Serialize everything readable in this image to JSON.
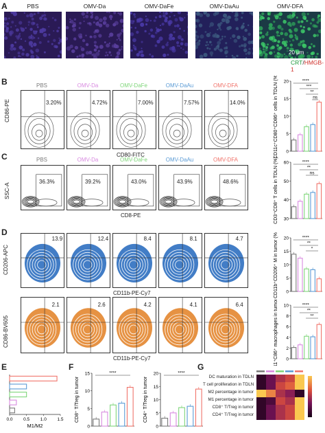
{
  "panel_a": {
    "letter": "A",
    "groups": [
      "PBS",
      "OMV-Da",
      "OMV-DaFe",
      "OMV-DaAu",
      "OMV-DFA"
    ],
    "scale_bar": "20 μm",
    "legend_crt": "CRT",
    "legend_sep": "/",
    "legend_hmgb": "HMGB-1"
  },
  "panel_b": {
    "letter": "B",
    "groups": [
      "PBS",
      "OMV-Da",
      "OMV-DaFe",
      "OMV-DaAu",
      "OMV-DFA"
    ],
    "percentages": [
      "3.20%",
      "4.72%",
      "7.00%",
      "7.57%",
      "14.0%"
    ],
    "y_label": "CD86-PE",
    "x_label": "CD80-FITC",
    "chart_y_label": "CD11c⁺CD80⁺CD86⁺ cells in TDLN (%)",
    "chart_ticks": [
      "0",
      "5",
      "10",
      "15",
      "20"
    ],
    "sig": [
      "ns",
      "**",
      "***",
      "****"
    ]
  },
  "panel_c": {
    "letter": "C",
    "groups": [
      "PBS",
      "OMV-Da",
      "OMV-DaFe",
      "OMV-DaAu",
      "OMV-DFA"
    ],
    "percentages": [
      "36.3%",
      "39.2%",
      "43.0%",
      "43.9%",
      "48.6%"
    ],
    "y_label": "SSC-A",
    "x_label": "CD8-PE",
    "chart_y_label": "CD3⁺CD8⁺ T cells in TDLN (%)",
    "chart_ticks": [
      "30",
      "40",
      "50",
      "60"
    ],
    "sig": [
      "****",
      "**",
      "ns"
    ]
  },
  "panel_d": {
    "letter": "D",
    "groups": [
      "PBS",
      "OMV-Da",
      "OMV-DaFe",
      "OMV-DaAu",
      "OMV-DFA"
    ],
    "blue_values": [
      "13.9",
      "12.4",
      "8.4",
      "8.1",
      "4.7"
    ],
    "orange_values": [
      "2.1",
      "2.6",
      "4.2",
      "4.1",
      "6.4"
    ],
    "blue_y_label": "CD206-APC",
    "orange_y_label": "CD86-BV605",
    "x_label": "CD11b-PE-Cy7",
    "chart1_y_label": "CD11b⁺CD206⁺ M in tumor (%)",
    "chart1_ticks": [
      "0",
      "5",
      "10",
      "15",
      "20"
    ],
    "chart1_sig": [
      "****",
      "**",
      "*"
    ],
    "chart2_y_label": "CD11⁺C86⁺ macrophages in tumor (%)",
    "chart2_ticks": [
      "0",
      "2",
      "4",
      "6",
      "8",
      "10"
    ],
    "chart2_sig": [
      "****",
      "**",
      "**"
    ]
  },
  "panel_e": {
    "letter": "E",
    "x_label": "M1/M2",
    "ticks": [
      "0.0",
      "0.5",
      "1.0",
      "1.5"
    ]
  },
  "panel_f": {
    "letter": "F",
    "y1_label": "CD8⁺ T/Treg in tumor",
    "y2_label": "CD4⁺ T/Treg in tumor",
    "ticks1": [
      "0",
      "5",
      "10",
      "15"
    ],
    "ticks2": [
      "0",
      "5",
      "10",
      "15",
      "20"
    ],
    "sig": "****"
  },
  "panel_g": {
    "letter": "G",
    "rows": [
      "DC maturation in TDLN",
      "T cell proliferation in TDLN",
      "M2 percentage in tumor",
      "M1 percentage in tumor",
      "CD8⁺ T/Treg in tumor",
      "CD4⁺ T/Treg in tumor"
    ]
  },
  "colors": {
    "pbs": "#7a7a7a",
    "da": "#d88ae0",
    "dafe": "#7fd67a",
    "daau": "#5b9bd5",
    "dfa": "#f0736a",
    "blue_flow": "#2e6fc0",
    "orange_flow": "#e3862f"
  },
  "chart_data": [
    {
      "type": "bar",
      "categories": [
        "PBS",
        "OMV-Da",
        "OMV-DaFe",
        "OMV-DaAu",
        "OMV-DFA"
      ],
      "values": [
        3.2,
        4.7,
        7.0,
        7.6,
        14.0
      ],
      "ylabel": "CD11c⁺CD80⁺CD86⁺ cells in TDLN (%)",
      "ylim": [
        0,
        20
      ]
    },
    {
      "type": "bar",
      "categories": [
        "PBS",
        "OMV-Da",
        "OMV-DaFe",
        "OMV-DaAu",
        "OMV-DFA"
      ],
      "values": [
        36.3,
        39.2,
        43.0,
        43.9,
        48.6
      ],
      "ylabel": "CD3⁺CD8⁺ T cells in TDLN (%)",
      "ylim": [
        30,
        60
      ]
    },
    {
      "type": "bar",
      "categories": [
        "PBS",
        "OMV-Da",
        "OMV-DaFe",
        "OMV-DaAu",
        "OMV-DFA"
      ],
      "values": [
        13.9,
        12.4,
        8.4,
        8.1,
        4.7
      ],
      "ylabel": "CD11b⁺CD206⁺ M in tumor (%)",
      "ylim": [
        0,
        20
      ]
    },
    {
      "type": "bar",
      "categories": [
        "PBS",
        "OMV-Da",
        "OMV-DaFe",
        "OMV-DaAu",
        "OMV-DFA"
      ],
      "values": [
        2.1,
        2.6,
        4.2,
        4.1,
        6.4
      ],
      "ylabel": "CD11⁺C86⁺ macrophages in tumor (%)",
      "ylim": [
        0,
        10
      ]
    },
    {
      "type": "bar",
      "categories": [
        "PBS",
        "OMV-Da",
        "OMV-DaFe",
        "OMV-DaAu",
        "OMV-DFA"
      ],
      "values": [
        0.15,
        0.2,
        0.5,
        0.5,
        1.4
      ],
      "xlabel": "M1/M2",
      "xlim": [
        0,
        1.5
      ]
    },
    {
      "type": "bar",
      "categories": [
        "PBS",
        "OMV-Da",
        "OMV-DaFe",
        "OMV-DaAu",
        "OMV-DFA"
      ],
      "values": [
        2,
        4,
        6,
        6.5,
        11
      ],
      "ylabel": "CD8⁺ T/Treg in tumor",
      "ylim": [
        0,
        15
      ]
    },
    {
      "type": "bar",
      "categories": [
        "PBS",
        "OMV-Da",
        "OMV-DaFe",
        "OMV-DaAu",
        "OMV-DFA"
      ],
      "values": [
        3,
        5,
        7,
        7.5,
        14
      ],
      "ylabel": "CD4⁺ T/Treg in tumor",
      "ylim": [
        0,
        20
      ]
    },
    {
      "type": "heatmap",
      "rows": [
        "DC maturation in TDLN",
        "T cell proliferation in TDLN",
        "M2 percentage in tumor",
        "M1 percentage in tumor",
        "CD8⁺ T/Treg in tumor",
        "CD4⁺ T/Treg in tumor"
      ],
      "values": [
        [
          0.1,
          0.3,
          0.5,
          0.6,
          1.0
        ],
        [
          0.1,
          0.3,
          0.6,
          0.7,
          1.0
        ],
        [
          1.0,
          0.8,
          0.5,
          0.4,
          0.1
        ],
        [
          0.1,
          0.2,
          0.6,
          0.5,
          1.0
        ],
        [
          0.1,
          0.3,
          0.5,
          0.6,
          1.0
        ],
        [
          0.1,
          0.3,
          0.5,
          0.6,
          1.0
        ]
      ]
    }
  ]
}
